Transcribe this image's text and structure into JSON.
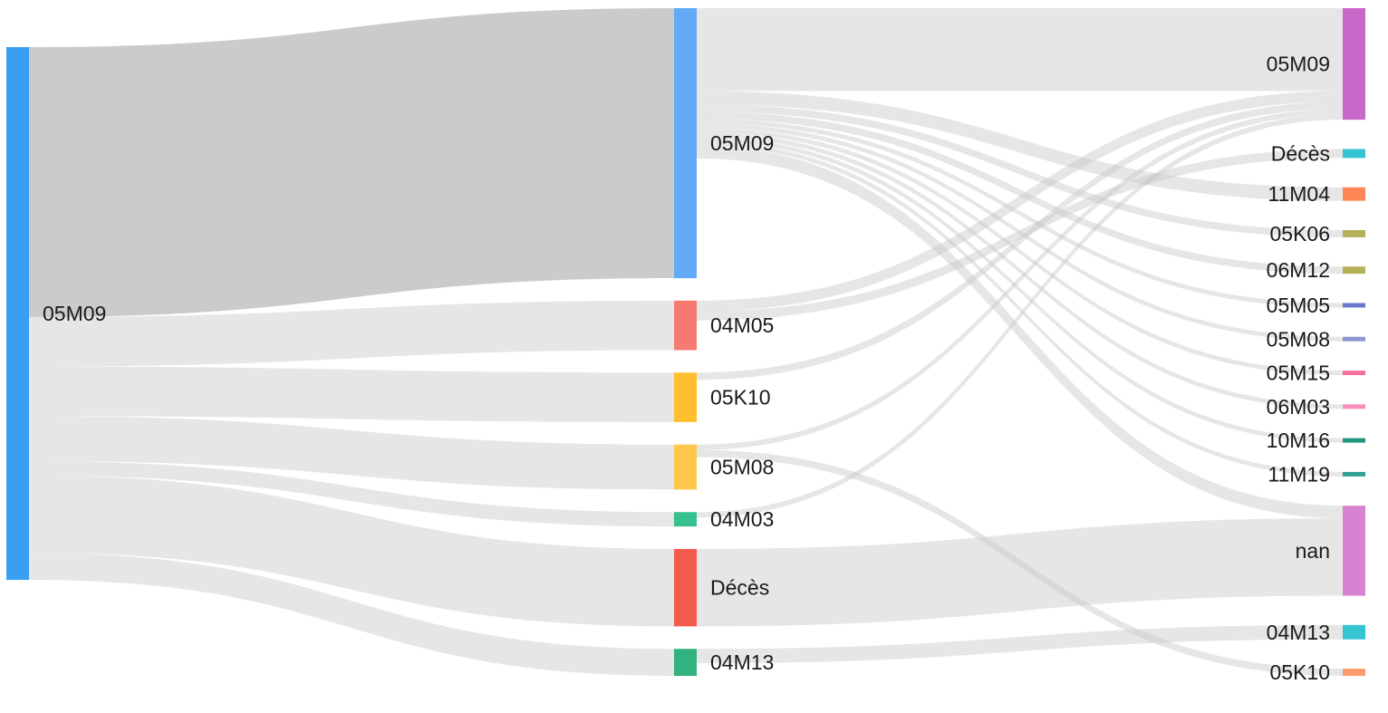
{
  "chart_data": {
    "type": "sankey",
    "columns": [
      [
        "05M09"
      ],
      [
        "05M09",
        "04M05",
        "05K10",
        "05M08",
        "04M03",
        "Décès",
        "04M13"
      ],
      [
        "05M09",
        "Décès",
        "11M04",
        "05K06",
        "06M12",
        "05M05",
        "05M08",
        "05M15",
        "06M03",
        "10M16",
        "11M19",
        "nan",
        "04M13",
        "05K10"
      ]
    ],
    "node_colors": [
      [
        "#399ff3"
      ],
      [
        "#63abf7",
        "#f57b70",
        "#ffbf2e",
        "#ffc84c",
        "#36c08d",
        "#f55a4e",
        "#32b27e"
      ],
      [
        "#c868c8",
        "#36c4d2",
        "#fe8757",
        "#b5b05a",
        "#b5b05a",
        "#6a79cb",
        "#8c97cf",
        "#f46fa0",
        "#f98fb9",
        "#229580",
        "#2f9f92",
        "#d783d2",
        "#36c4d2",
        "#fe9a6f"
      ]
    ],
    "flows": [
      {
        "from": [
          0,
          0
        ],
        "to": [
          1,
          0
        ],
        "value": 300,
        "highlighted": true
      },
      {
        "from": [
          0,
          0
        ],
        "to": [
          1,
          1
        ],
        "value": 55
      },
      {
        "from": [
          0,
          0
        ],
        "to": [
          1,
          2
        ],
        "value": 55
      },
      {
        "from": [
          0,
          0
        ],
        "to": [
          1,
          3
        ],
        "value": 50
      },
      {
        "from": [
          0,
          0
        ],
        "to": [
          1,
          4
        ],
        "value": 16
      },
      {
        "from": [
          0,
          0
        ],
        "to": [
          1,
          5
        ],
        "value": 86
      },
      {
        "from": [
          0,
          0
        ],
        "to": [
          1,
          6
        ],
        "value": 30
      },
      {
        "from": [
          1,
          0
        ],
        "to": [
          2,
          0
        ],
        "value": 92
      },
      {
        "from": [
          1,
          0
        ],
        "to": [
          2,
          2
        ],
        "value": 15
      },
      {
        "from": [
          1,
          0
        ],
        "to": [
          2,
          3
        ],
        "value": 8
      },
      {
        "from": [
          1,
          0
        ],
        "to": [
          2,
          4
        ],
        "value": 8
      },
      {
        "from": [
          1,
          0
        ],
        "to": [
          2,
          5
        ],
        "value": 5
      },
      {
        "from": [
          1,
          0
        ],
        "to": [
          2,
          6
        ],
        "value": 5
      },
      {
        "from": [
          1,
          0
        ],
        "to": [
          2,
          7
        ],
        "value": 5
      },
      {
        "from": [
          1,
          0
        ],
        "to": [
          2,
          8
        ],
        "value": 5
      },
      {
        "from": [
          1,
          0
        ],
        "to": [
          2,
          9
        ],
        "value": 5
      },
      {
        "from": [
          1,
          0
        ],
        "to": [
          2,
          10
        ],
        "value": 5
      },
      {
        "from": [
          1,
          0
        ],
        "to": [
          2,
          11
        ],
        "value": 14
      },
      {
        "from": [
          1,
          1
        ],
        "to": [
          2,
          0
        ],
        "value": 12
      },
      {
        "from": [
          1,
          1
        ],
        "to": [
          2,
          1
        ],
        "value": 10
      },
      {
        "from": [
          1,
          2
        ],
        "to": [
          2,
          0
        ],
        "value": 8
      },
      {
        "from": [
          1,
          3
        ],
        "to": [
          2,
          0
        ],
        "value": 6
      },
      {
        "from": [
          1,
          3
        ],
        "to": [
          2,
          13
        ],
        "value": 8
      },
      {
        "from": [
          1,
          4
        ],
        "to": [
          2,
          0
        ],
        "value": 6
      },
      {
        "from": [
          1,
          5
        ],
        "to": [
          2,
          11
        ],
        "value": 86
      },
      {
        "from": [
          1,
          6
        ],
        "to": [
          2,
          12
        ],
        "value": 16
      }
    ],
    "label_sides": [
      "right",
      "right",
      "left"
    ]
  }
}
